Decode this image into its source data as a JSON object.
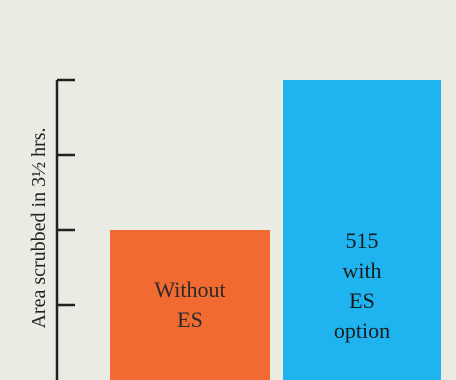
{
  "chart_data": {
    "type": "bar",
    "ylabel": "Area scrubbed in 3½ hrs.",
    "ylim": [
      0,
      4
    ],
    "yticks": [
      1,
      2,
      3,
      4
    ],
    "grid": false,
    "categories": [
      {
        "label_lines": [
          "Without",
          "ES"
        ],
        "value": 2.0,
        "color": "#f06a32"
      },
      {
        "label_lines": [
          "515",
          "with",
          "ES",
          "option"
        ],
        "value": 4.0,
        "color": "#1fb3f0"
      }
    ]
  },
  "colors": {
    "background": "#ebebe4",
    "axis": "#222222"
  }
}
